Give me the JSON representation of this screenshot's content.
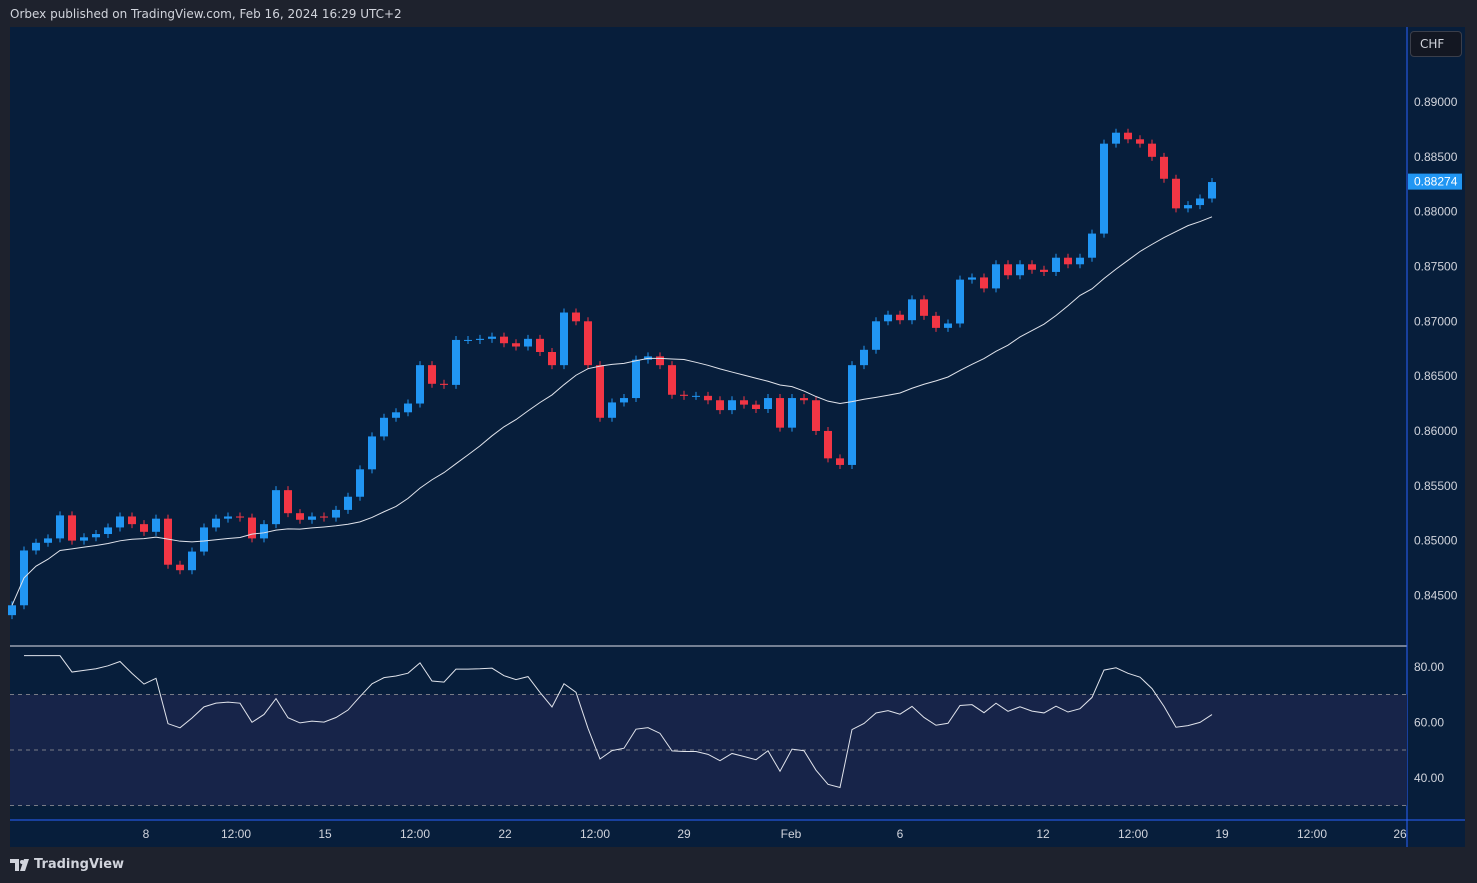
{
  "header": {
    "title": "Orbex published on TradingView.com, Feb 16, 2024 16:29 UTC+2"
  },
  "currency_button": "CHF",
  "footer": {
    "logo_text": "TradingView"
  },
  "colors": {
    "up": "#2196f3",
    "down": "#f23645",
    "background": "#071e3b",
    "ma": "#e0e3eb",
    "rsi": "#e0e3eb",
    "rsi_band": "#172449",
    "last_price_label": "#2196f3"
  },
  "chart_data": [
    {
      "type": "candlestick",
      "title": "",
      "y_axis": {
        "ticks": [
          "0.89000",
          "0.88500",
          "0.88000",
          "0.87500",
          "0.87000",
          "0.86500",
          "0.86000",
          "0.85500",
          "0.85000",
          "0.84500"
        ],
        "range": [
          0.8415,
          0.8955
        ]
      },
      "x_axis": {
        "ticks": [
          "8",
          "12:00",
          "15",
          "12:00",
          "22",
          "12:00",
          "29",
          "Feb",
          "6",
          "12",
          "12:00",
          "19",
          "12:00",
          "26"
        ]
      },
      "last_price": "0.88274",
      "first_open": 0.8432,
      "closes": [
        0.8441,
        0.8491,
        0.8498,
        0.8502,
        0.8523,
        0.85,
        0.8503,
        0.8506,
        0.8512,
        0.8522,
        0.8515,
        0.8508,
        0.852,
        0.8478,
        0.8473,
        0.849,
        0.8512,
        0.852,
        0.8522,
        0.8521,
        0.8502,
        0.8515,
        0.8546,
        0.8525,
        0.8519,
        0.8522,
        0.8521,
        0.8528,
        0.854,
        0.8565,
        0.8595,
        0.8612,
        0.8617,
        0.8625,
        0.866,
        0.8643,
        0.8642,
        0.8683,
        0.8683,
        0.8684,
        0.8686,
        0.868,
        0.8677,
        0.8684,
        0.8672,
        0.866,
        0.8708,
        0.87,
        0.866,
        0.8612,
        0.8626,
        0.863,
        0.8665,
        0.8668,
        0.866,
        0.8633,
        0.8632,
        0.8632,
        0.8628,
        0.8619,
        0.8628,
        0.8624,
        0.862,
        0.863,
        0.8603,
        0.863,
        0.8628,
        0.86,
        0.8575,
        0.8569,
        0.866,
        0.8674,
        0.87,
        0.8706,
        0.8701,
        0.872,
        0.8705,
        0.8694,
        0.8698,
        0.8738,
        0.874,
        0.873,
        0.8752,
        0.8742,
        0.8752,
        0.8747,
        0.8745,
        0.8758,
        0.8752,
        0.8758,
        0.878,
        0.8862,
        0.8872,
        0.8866,
        0.8862,
        0.885,
        0.883,
        0.8803,
        0.8806,
        0.8812,
        0.8827
      ],
      "moving_average": {
        "type": "SMA",
        "period": 20
      }
    },
    {
      "type": "line",
      "indicator": "RSI",
      "period": 14,
      "y_axis": {
        "ticks": [
          "80.00",
          "60.00",
          "40.00"
        ],
        "range": [
          24,
          88
        ]
      },
      "bands": {
        "upper": 70,
        "middle": 50,
        "lower": 30
      }
    }
  ]
}
